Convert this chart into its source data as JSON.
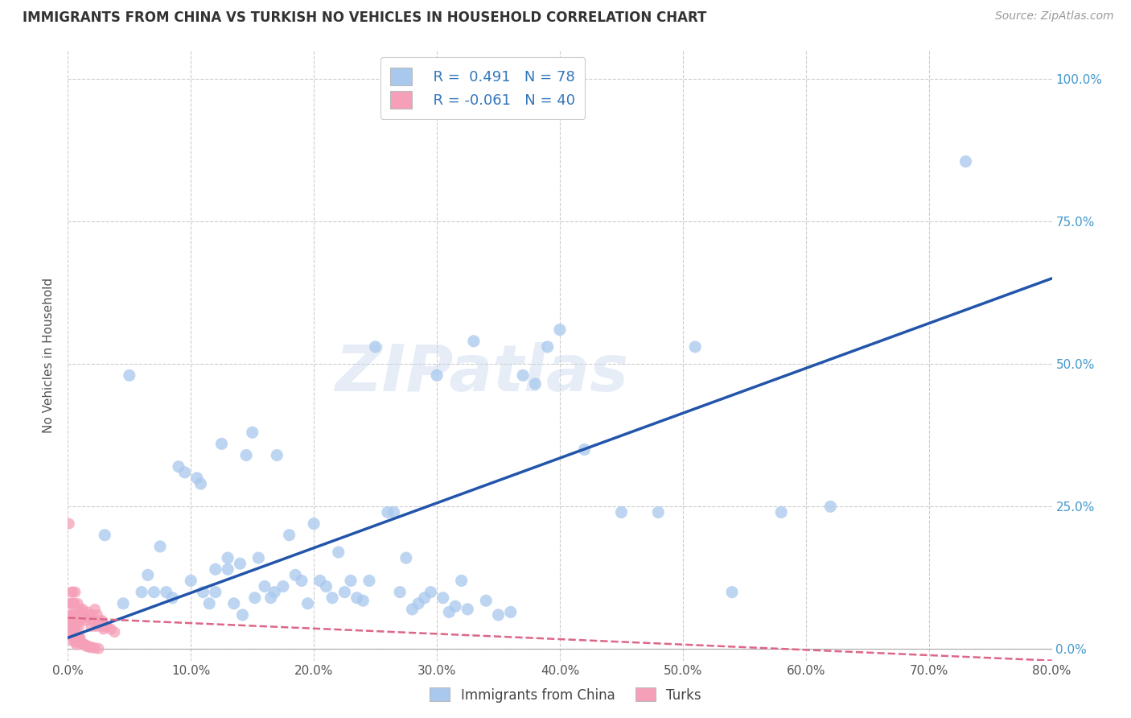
{
  "title": "IMMIGRANTS FROM CHINA VS TURKISH NO VEHICLES IN HOUSEHOLD CORRELATION CHART",
  "source": "Source: ZipAtlas.com",
  "ylabel_label": "No Vehicles in Household",
  "legend_label_china": "Immigrants from China",
  "legend_label_turks": "Turks",
  "legend_r_china": "R =  0.491",
  "legend_n_china": "N = 78",
  "legend_r_turks": "R = -0.061",
  "legend_n_turks": "N = 40",
  "color_china": "#A8C8EE",
  "color_turks": "#F5A0B8",
  "color_trendline_china": "#2255AA",
  "color_trendline_turks": "#DD6688",
  "watermark": "ZIPatlas",
  "china_x": [
    0.03,
    0.045,
    0.05,
    0.06,
    0.065,
    0.07,
    0.075,
    0.08,
    0.085,
    0.09,
    0.095,
    0.1,
    0.105,
    0.108,
    0.11,
    0.115,
    0.12,
    0.12,
    0.125,
    0.13,
    0.13,
    0.135,
    0.14,
    0.142,
    0.145,
    0.15,
    0.152,
    0.155,
    0.16,
    0.165,
    0.168,
    0.17,
    0.175,
    0.18,
    0.185,
    0.19,
    0.195,
    0.2,
    0.205,
    0.21,
    0.215,
    0.22,
    0.225,
    0.23,
    0.235,
    0.24,
    0.245,
    0.25,
    0.26,
    0.265,
    0.27,
    0.275,
    0.28,
    0.285,
    0.29,
    0.295,
    0.3,
    0.305,
    0.31,
    0.315,
    0.32,
    0.325,
    0.33,
    0.34,
    0.35,
    0.36,
    0.37,
    0.38,
    0.39,
    0.4,
    0.42,
    0.45,
    0.48,
    0.51,
    0.54,
    0.58,
    0.62,
    0.73
  ],
  "china_y": [
    0.2,
    0.08,
    0.48,
    0.1,
    0.13,
    0.1,
    0.18,
    0.1,
    0.09,
    0.32,
    0.31,
    0.12,
    0.3,
    0.29,
    0.1,
    0.08,
    0.14,
    0.1,
    0.36,
    0.14,
    0.16,
    0.08,
    0.15,
    0.06,
    0.34,
    0.38,
    0.09,
    0.16,
    0.11,
    0.09,
    0.1,
    0.34,
    0.11,
    0.2,
    0.13,
    0.12,
    0.08,
    0.22,
    0.12,
    0.11,
    0.09,
    0.17,
    0.1,
    0.12,
    0.09,
    0.085,
    0.12,
    0.53,
    0.24,
    0.24,
    0.1,
    0.16,
    0.07,
    0.08,
    0.09,
    0.1,
    0.48,
    0.09,
    0.065,
    0.075,
    0.12,
    0.07,
    0.54,
    0.085,
    0.06,
    0.065,
    0.48,
    0.465,
    0.53,
    0.56,
    0.35,
    0.24,
    0.24,
    0.53,
    0.1,
    0.24,
    0.25,
    0.855
  ],
  "turks_x": [
    0.002,
    0.003,
    0.003,
    0.004,
    0.004,
    0.005,
    0.005,
    0.006,
    0.006,
    0.007,
    0.007,
    0.008,
    0.008,
    0.009,
    0.009,
    0.01,
    0.01,
    0.011,
    0.012,
    0.013,
    0.014,
    0.015,
    0.016,
    0.017,
    0.018,
    0.019,
    0.02,
    0.021,
    0.022,
    0.023,
    0.024,
    0.025,
    0.026,
    0.027,
    0.028,
    0.029,
    0.03,
    0.032,
    0.035,
    0.038
  ],
  "turks_y": [
    0.06,
    0.08,
    0.04,
    0.1,
    0.05,
    0.08,
    0.06,
    0.1,
    0.05,
    0.06,
    0.04,
    0.08,
    0.05,
    0.06,
    0.04,
    0.07,
    0.05,
    0.065,
    0.07,
    0.055,
    0.06,
    0.05,
    0.065,
    0.055,
    0.06,
    0.04,
    0.06,
    0.05,
    0.07,
    0.04,
    0.06,
    0.045,
    0.05,
    0.04,
    0.05,
    0.035,
    0.04,
    0.04,
    0.035,
    0.03
  ],
  "turks_cluster_x": [
    0.001,
    0.002,
    0.002,
    0.002,
    0.003,
    0.003,
    0.003,
    0.004,
    0.004,
    0.004,
    0.005,
    0.005,
    0.005,
    0.005,
    0.006,
    0.006,
    0.006,
    0.007,
    0.007,
    0.008,
    0.008,
    0.009,
    0.01,
    0.01,
    0.011,
    0.012,
    0.013,
    0.014,
    0.015,
    0.016,
    0.017,
    0.018,
    0.02,
    0.022,
    0.025,
    0.003,
    0.004,
    0.005,
    0.006,
    0.007
  ],
  "turks_cluster_y": [
    0.22,
    0.05,
    0.08,
    0.03,
    0.04,
    0.06,
    0.1,
    0.03,
    0.05,
    0.08,
    0.04,
    0.06,
    0.02,
    0.08,
    0.03,
    0.05,
    0.02,
    0.025,
    0.015,
    0.02,
    0.015,
    0.02,
    0.015,
    0.02,
    0.01,
    0.01,
    0.008,
    0.008,
    0.005,
    0.005,
    0.005,
    0.003,
    0.003,
    0.002,
    0.001,
    0.015,
    0.025,
    0.018,
    0.012,
    0.008
  ],
  "xlim": [
    0.0,
    0.8
  ],
  "ylim": [
    -0.02,
    1.05
  ],
  "xtick_vals": [
    0.0,
    0.1,
    0.2,
    0.3,
    0.4,
    0.5,
    0.6,
    0.7,
    0.8
  ],
  "ytick_vals": [
    0.0,
    0.25,
    0.5,
    0.75,
    1.0
  ],
  "background_color": "#FFFFFF",
  "grid_color": "#CCCCCC"
}
